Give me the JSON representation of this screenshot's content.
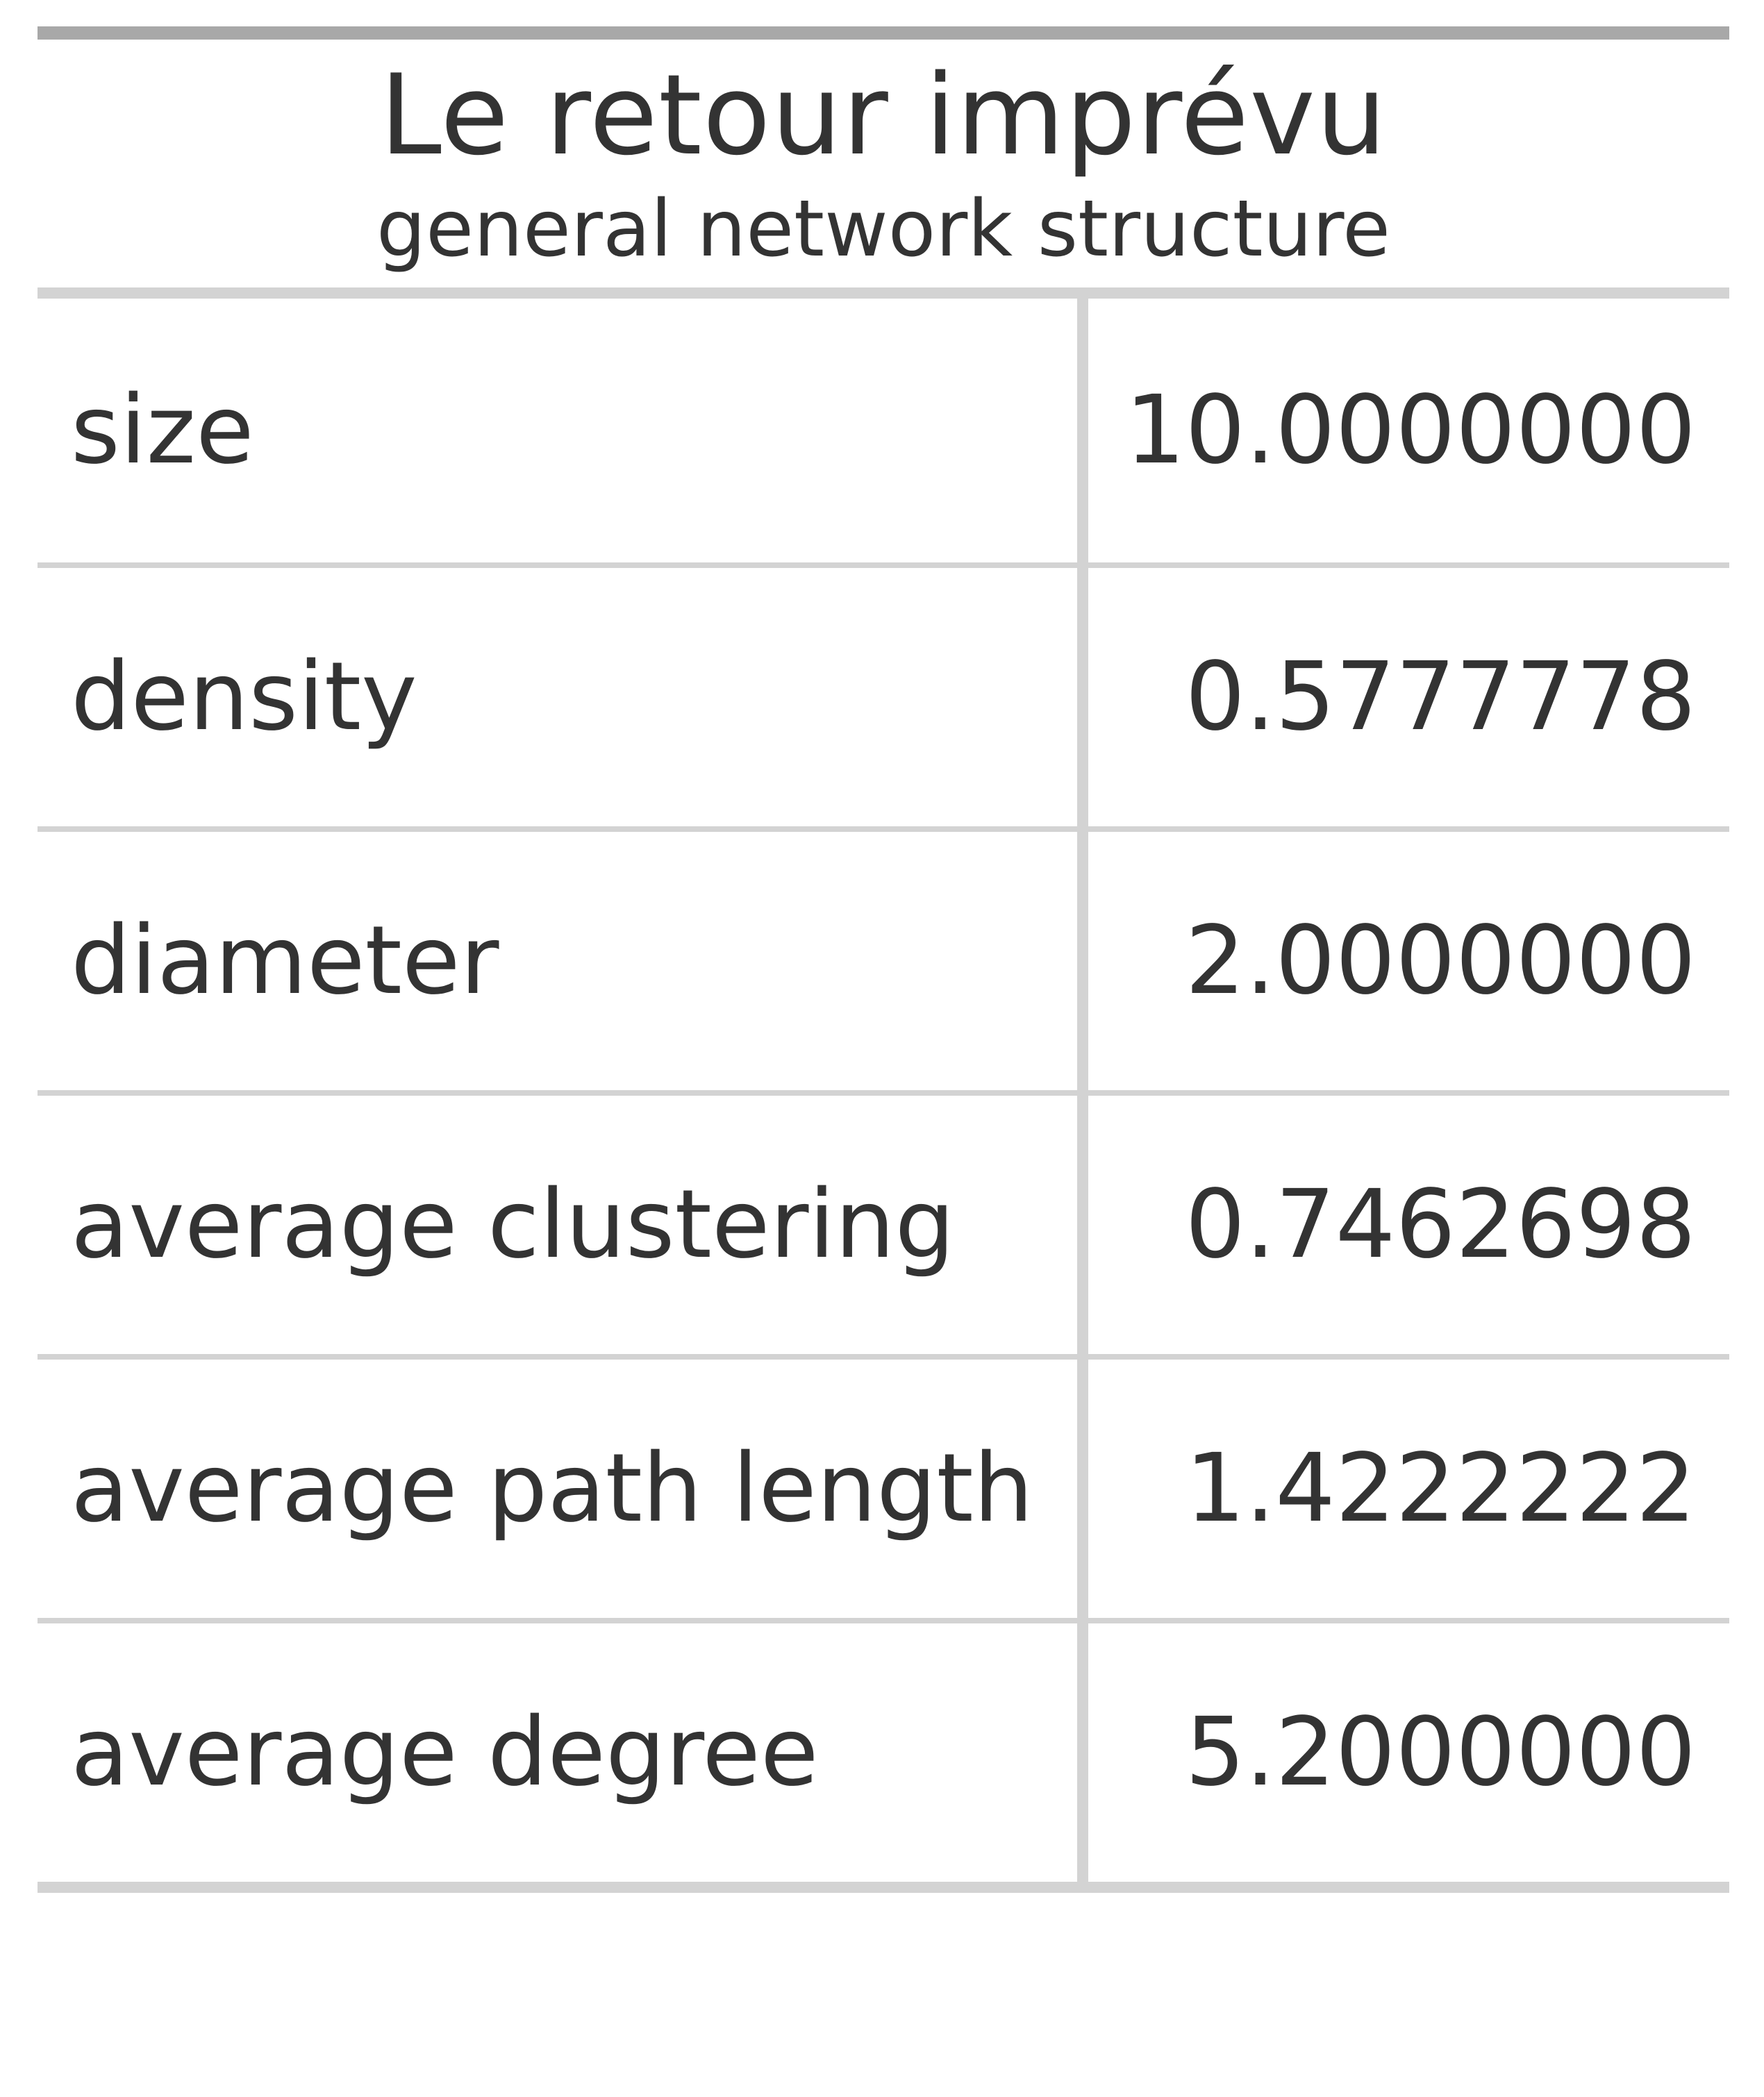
{
  "chart_data": {
    "type": "table",
    "title": "Le retour imprévu",
    "subtitle": "general network structure",
    "rows": [
      {
        "label": "size",
        "value": "10.0000000"
      },
      {
        "label": "density",
        "value": "0.5777778"
      },
      {
        "label": "diameter",
        "value": "2.0000000"
      },
      {
        "label": "average clustering",
        "value": "0.7462698"
      },
      {
        "label": "average path length",
        "value": "1.4222222"
      },
      {
        "label": "average degree",
        "value": "5.2000000"
      }
    ]
  },
  "colors": {
    "text": "#333333",
    "top_rule": "#a8a8a8",
    "grid": "#d3d3d3",
    "background": "#ffffff"
  }
}
